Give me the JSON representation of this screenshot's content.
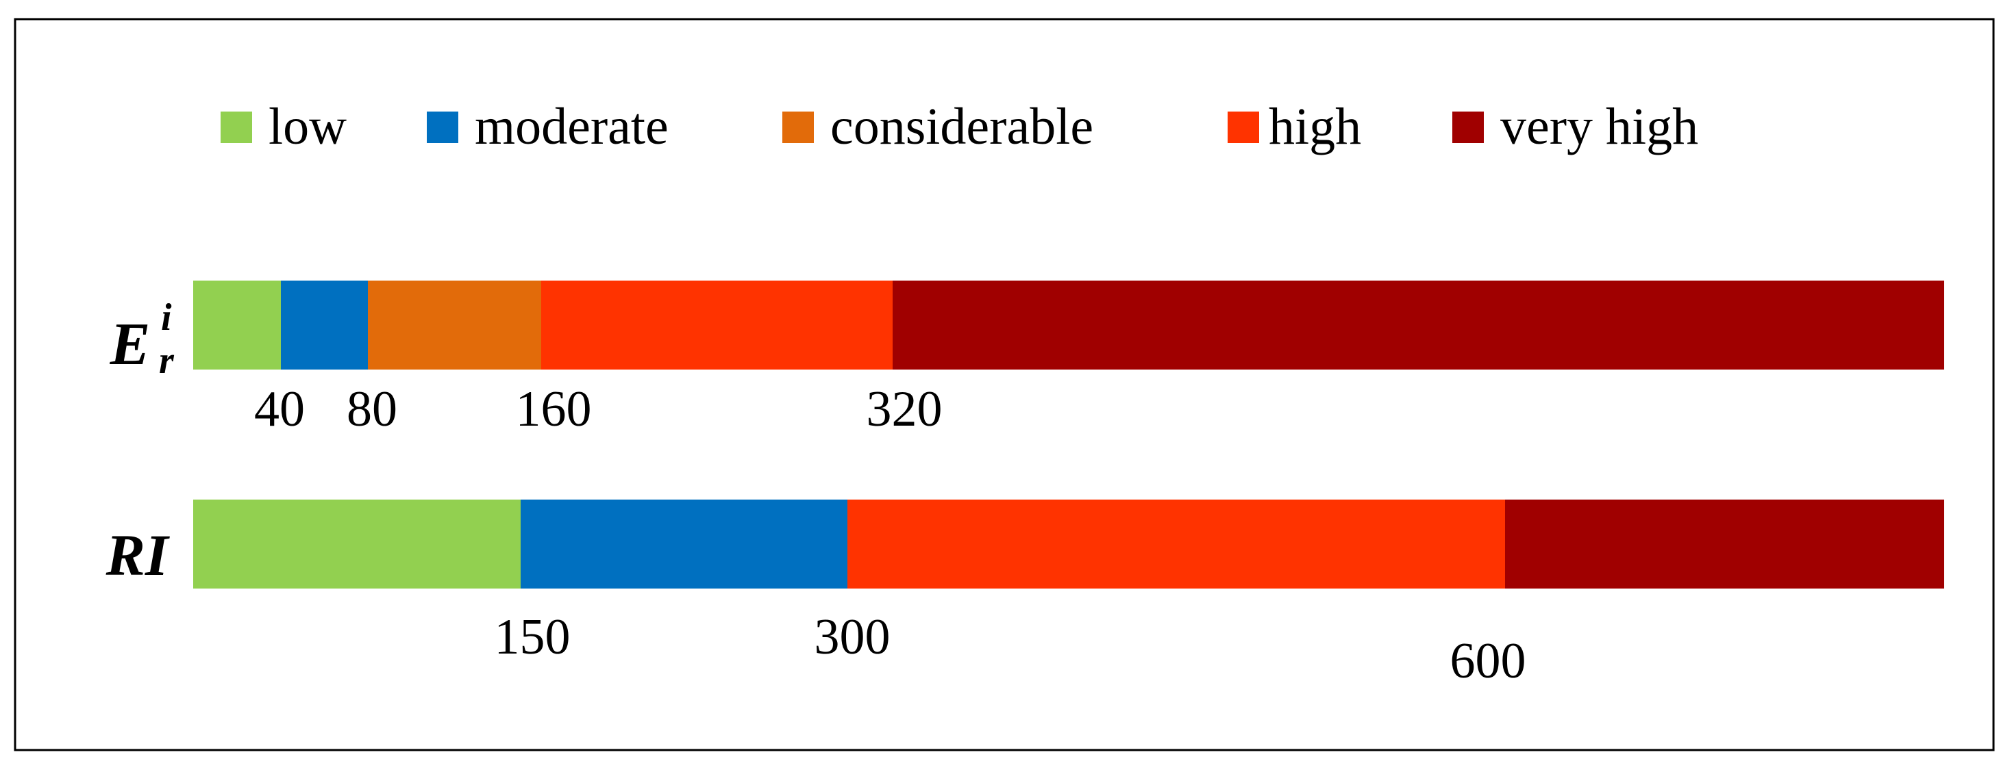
{
  "chart_data": {
    "type": "bar",
    "orientation": "horizontal-stacked",
    "legend_position": "top",
    "categories": [
      "low",
      "moderate",
      "considerable",
      "high",
      "very high"
    ],
    "colors": {
      "low": "#92D050",
      "moderate": "#0070C0",
      "considerable": "#E26B0A",
      "high": "#FF3300",
      "very high": "#A00000"
    },
    "bars": [
      {
        "label": "E",
        "label_sup": "i",
        "label_sub": "r",
        "segments": [
          {
            "class": "low",
            "from": 0,
            "to": 40
          },
          {
            "class": "moderate",
            "from": 40,
            "to": 80
          },
          {
            "class": "considerable",
            "from": 80,
            "to": 160
          },
          {
            "class": "high",
            "from": 160,
            "to": 320
          },
          {
            "class": "very high",
            "from": 320,
            "to": 800
          }
        ],
        "tick_labels": [
          "40",
          "80",
          "160",
          "320"
        ]
      },
      {
        "label": "RI",
        "segments": [
          {
            "class": "low",
            "from": 0,
            "to": 150
          },
          {
            "class": "moderate",
            "from": 150,
            "to": 300
          },
          {
            "class": "high",
            "from": 300,
            "to": 600
          },
          {
            "class": "very high",
            "from": 600,
            "to": 800
          }
        ],
        "tick_labels": [
          "150",
          "300",
          "600"
        ]
      }
    ]
  }
}
